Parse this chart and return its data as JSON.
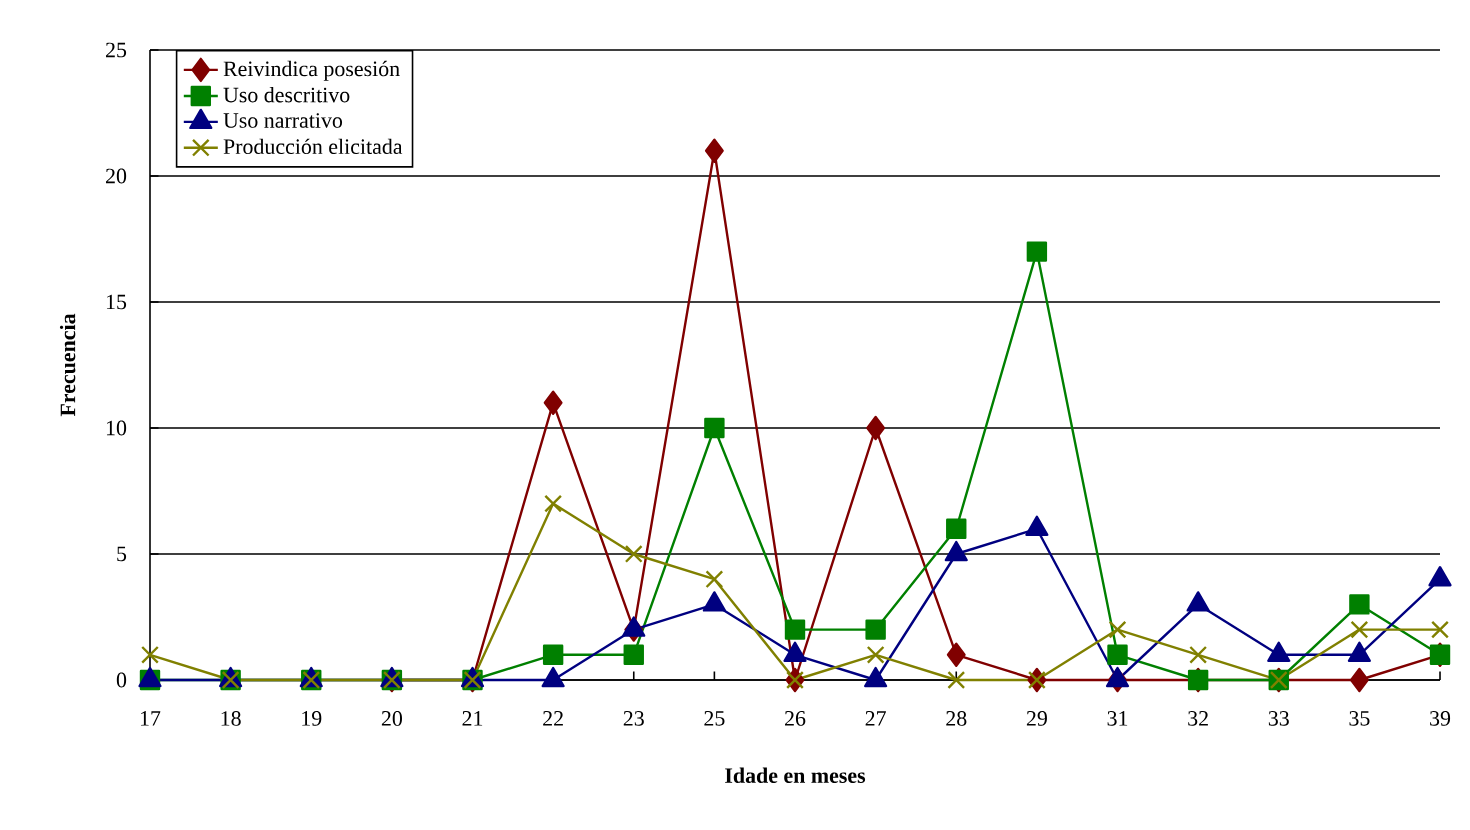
{
  "chart_data": {
    "type": "line",
    "xlabel": "Idade en meses",
    "ylabel": "Frecuencia",
    "categories": [
      "17",
      "18",
      "19",
      "20",
      "21",
      "22",
      "23",
      "25",
      "26",
      "27",
      "28",
      "29",
      "31",
      "32",
      "33",
      "35",
      "39"
    ],
    "series": [
      {
        "name": "Reivindica posesión",
        "color": "#800000",
        "marker": "diamond",
        "values": [
          null,
          null,
          null,
          0,
          0,
          11,
          2,
          21,
          0,
          10,
          1,
          0,
          0,
          0,
          0,
          0,
          1
        ]
      },
      {
        "name": "Uso descritivo",
        "color": "#008000",
        "marker": "square",
        "values": [
          0,
          0,
          0,
          0,
          0,
          1,
          1,
          10,
          2,
          2,
          6,
          17,
          1,
          0,
          0,
          3,
          1
        ]
      },
      {
        "name": "Uso narrativo",
        "color": "#000080",
        "marker": "triangle",
        "values": [
          0,
          0,
          0,
          0,
          0,
          0,
          2,
          3,
          1,
          0,
          5,
          6,
          0,
          3,
          1,
          1,
          4
        ]
      },
      {
        "name": "Producción elicitada",
        "color": "#808000",
        "marker": "cross",
        "values": [
          1,
          0,
          0,
          0,
          0,
          7,
          5,
          4,
          0,
          1,
          0,
          0,
          2,
          1,
          0,
          2,
          2
        ]
      }
    ],
    "ylim": [
      0,
      25
    ],
    "yticks": [
      0,
      5,
      10,
      15,
      20,
      25
    ],
    "grid": "y",
    "legend": "top left",
    "line_style": "solid"
  }
}
